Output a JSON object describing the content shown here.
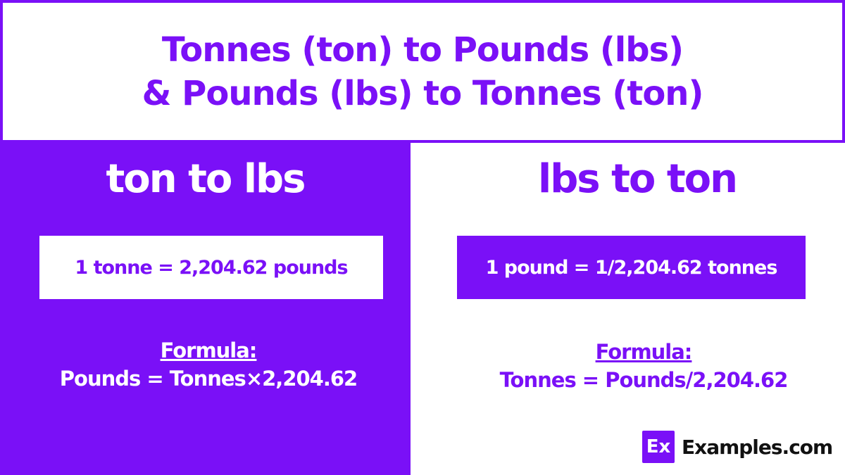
{
  "header": {
    "line1": "Tonnes (ton) to Pounds (lbs)",
    "line2": "& Pounds (lbs) to Tonnes (ton)"
  },
  "left": {
    "title": "ton to lbs",
    "equivalence": "1 tonne = 2,204.62 pounds",
    "formula_label": "Formula:",
    "formula": "Pounds = Tonnes×2,204.62"
  },
  "right": {
    "title": "lbs to ton",
    "equivalence": "1 pound = 1/2,204.62 tonnes",
    "formula_label": "Formula:",
    "formula": "Tonnes = Pounds/2,204.62"
  },
  "logo": {
    "mark": "Ex",
    "name": "Examples.com"
  },
  "colors": {
    "accent": "#7a10f7",
    "background": "#ffffff"
  }
}
